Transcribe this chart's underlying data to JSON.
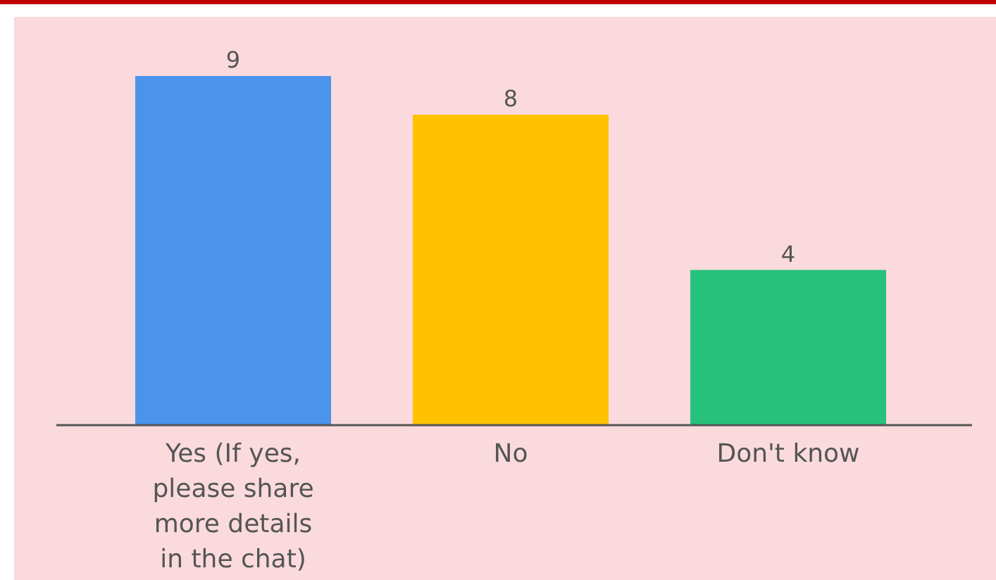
{
  "chart_data": {
    "type": "bar",
    "categories": [
      "Yes (If yes, please share more details in the chat)",
      "No",
      "Don't know"
    ],
    "values": [
      9,
      8,
      4
    ],
    "colors": [
      "#4a94ec",
      "#fec200",
      "#26c27c"
    ],
    "data_labels": true
  }
}
